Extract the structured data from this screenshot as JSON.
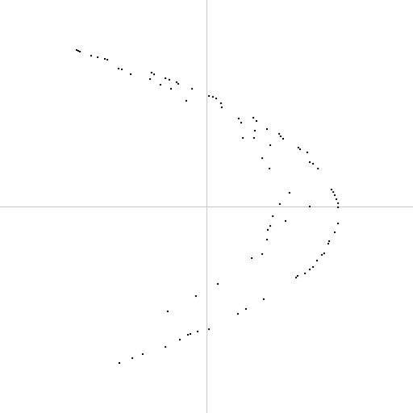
{
  "chart_data": {
    "type": "scatter",
    "title": "",
    "xlabel": "",
    "ylabel": "",
    "xlim": [
      -1,
      1
    ],
    "ylim": [
      -1,
      1
    ],
    "grid": false,
    "axes_at_origin": true,
    "colors": {
      "axis": "#c8c8c8",
      "point": "#000000",
      "background": "#ffffff"
    },
    "series": [
      {
        "points": [
          [
            -0.629,
            0.758
          ],
          [
            -0.621,
            0.754
          ],
          [
            -0.613,
            0.75
          ],
          [
            -0.559,
            0.73
          ],
          [
            -0.527,
            0.723
          ],
          [
            -0.492,
            0.715
          ],
          [
            -0.48,
            0.711
          ],
          [
            -0.426,
            0.668
          ],
          [
            -0.41,
            0.664
          ],
          [
            -0.367,
            0.641
          ],
          [
            -0.266,
            0.648
          ],
          [
            -0.254,
            0.64
          ],
          [
            -0.273,
            0.617
          ],
          [
            -0.199,
            0.621
          ],
          [
            -0.18,
            0.614
          ],
          [
            -0.223,
            0.59
          ],
          [
            -0.145,
            0.602
          ],
          [
            -0.137,
            0.594
          ],
          [
            -0.172,
            0.57
          ],
          [
            -0.07,
            0.57
          ],
          [
            -0.098,
            0.512
          ],
          [
            0.012,
            0.535
          ],
          [
            0.031,
            0.531
          ],
          [
            0.047,
            0.523
          ],
          [
            0.07,
            0.5
          ],
          [
            0.074,
            0.48
          ],
          [
            0.156,
            0.426
          ],
          [
            0.168,
            0.406
          ],
          [
            0.227,
            0.43
          ],
          [
            0.242,
            0.414
          ],
          [
            0.293,
            0.375
          ],
          [
            0.234,
            0.367
          ],
          [
            0.176,
            0.332
          ],
          [
            0.23,
            0.332
          ],
          [
            0.352,
            0.352
          ],
          [
            0.359,
            0.34
          ],
          [
            0.371,
            0.328
          ],
          [
            0.309,
            0.297
          ],
          [
            0.445,
            0.285
          ],
          [
            0.453,
            0.277
          ],
          [
            0.488,
            0.262
          ],
          [
            0.5,
            0.215
          ],
          [
            0.516,
            0.207
          ],
          [
            0.54,
            0.184
          ],
          [
            0.27,
            0.234
          ],
          [
            0.305,
            0.184
          ],
          [
            0.605,
            0.082
          ],
          [
            0.614,
            0.07
          ],
          [
            0.621,
            0.055
          ],
          [
            0.629,
            0.035
          ],
          [
            0.637,
            0.016
          ],
          [
            0.637,
            -0.004
          ],
          [
            0.402,
            0.066
          ],
          [
            0.355,
            0.012
          ],
          [
            0.5,
            0.0
          ],
          [
            0.637,
            -0.082
          ],
          [
            0.321,
            -0.047
          ],
          [
            0.309,
            -0.094
          ],
          [
            0.383,
            -0.07
          ],
          [
            0.297,
            -0.113
          ],
          [
            0.621,
            -0.125
          ],
          [
            0.594,
            -0.168
          ],
          [
            0.59,
            -0.18
          ],
          [
            0.293,
            -0.16
          ],
          [
            0.57,
            -0.227
          ],
          [
            0.559,
            -0.234
          ],
          [
            0.535,
            -0.262
          ],
          [
            0.27,
            -0.23
          ],
          [
            0.219,
            -0.25
          ],
          [
            0.516,
            -0.293
          ],
          [
            0.5,
            -0.305
          ],
          [
            0.477,
            -0.324
          ],
          [
            0.441,
            -0.336
          ],
          [
            0.434,
            -0.344
          ],
          [
            0.055,
            -0.375
          ],
          [
            -0.051,
            -0.434
          ],
          [
            0.277,
            -0.449
          ],
          [
            0.191,
            -0.496
          ],
          [
            0.152,
            -0.52
          ],
          [
            -0.188,
            -0.508
          ],
          [
            0.012,
            -0.594
          ],
          [
            -0.043,
            -0.605
          ],
          [
            -0.078,
            -0.617
          ],
          [
            -0.09,
            -0.621
          ],
          [
            -0.129,
            -0.645
          ],
          [
            -0.199,
            -0.68
          ],
          [
            -0.309,
            -0.715
          ],
          [
            -0.359,
            -0.734
          ],
          [
            -0.422,
            -0.758
          ]
        ]
      }
    ]
  }
}
